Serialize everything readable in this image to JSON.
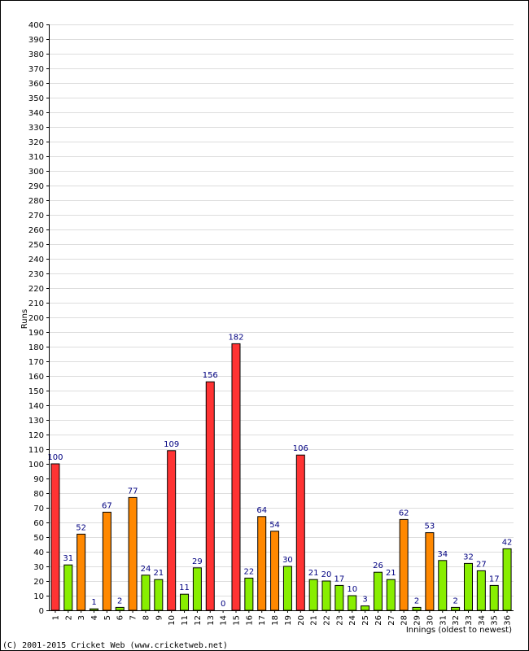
{
  "chart_data": {
    "type": "bar",
    "title": "",
    "ylabel": "Runs",
    "xlabel": "Innings (oldest to newest)",
    "ylim": [
      0,
      400
    ],
    "ytick_step": 10,
    "grid": true,
    "legend": "none",
    "categories": [
      "1",
      "2",
      "3",
      "4",
      "5",
      "6",
      "7",
      "8",
      "9",
      "10",
      "11",
      "12",
      "13",
      "14",
      "15",
      "16",
      "17",
      "18",
      "19",
      "20",
      "21",
      "22",
      "23",
      "24",
      "25",
      "26",
      "27",
      "28",
      "29",
      "30",
      "31",
      "32",
      "33",
      "34",
      "35",
      "36"
    ],
    "values": [
      100,
      31,
      52,
      1,
      67,
      2,
      77,
      24,
      21,
      109,
      11,
      29,
      156,
      0,
      182,
      22,
      64,
      54,
      30,
      106,
      21,
      20,
      17,
      10,
      3,
      26,
      21,
      62,
      2,
      53,
      34,
      2,
      32,
      27,
      17,
      42
    ],
    "colors": {
      "century": "#ff3333",
      "fifty": "#ff8800",
      "other": "#88ee00",
      "label": "#000080",
      "grid": "#dddddd"
    }
  },
  "footer": {
    "copyright": "(C) 2001-2015 Cricket Web (www.cricketweb.net)"
  }
}
